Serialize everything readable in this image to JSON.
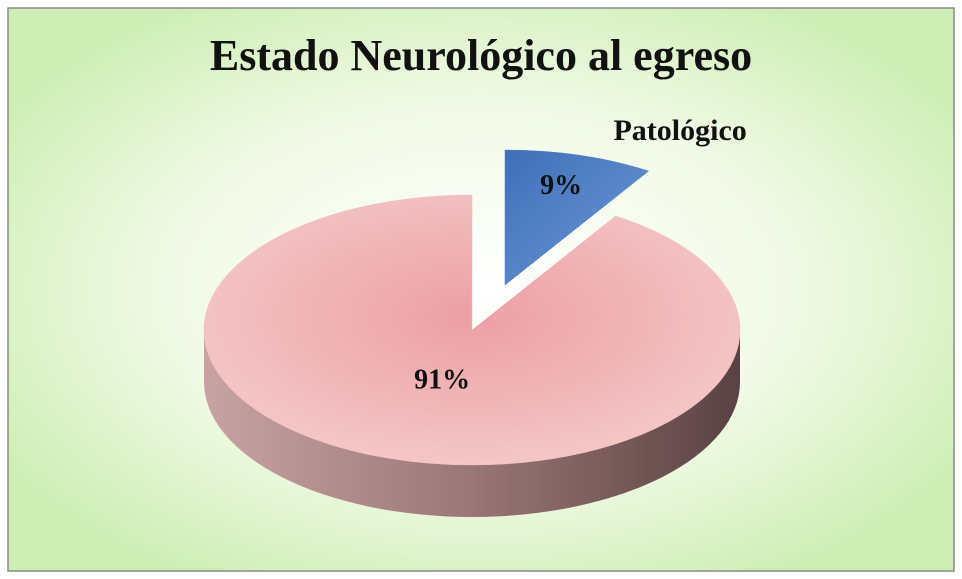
{
  "chart_data": {
    "type": "pie",
    "title": "Estado Neurológico al egreso",
    "categories": [
      "Patológico",
      null
    ],
    "values": [
      9,
      91
    ],
    "value_labels": [
      "9%",
      "91%"
    ],
    "colors": [
      "#4f7fc6",
      "#f2bcbc"
    ],
    "exploded": [
      true,
      false
    ]
  }
}
